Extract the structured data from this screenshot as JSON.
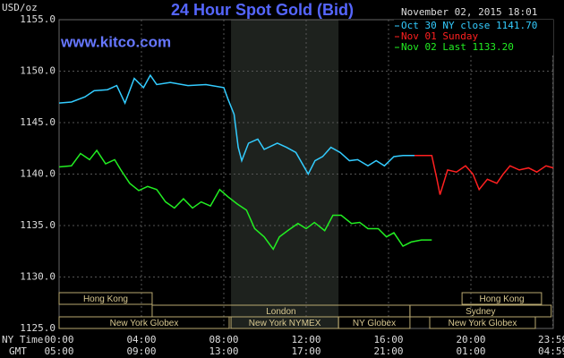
{
  "chart_data": {
    "type": "line",
    "title": "24 Hour Spot Gold (Bid)",
    "subtitle": "www.kitco.com",
    "timestamp": "November 02, 2015 18:01",
    "ylabel": "USD/oz",
    "xlabel": "NY Time",
    "x2label": "GMT",
    "xlim": [
      0,
      24
    ],
    "ylim": [
      1125,
      1155
    ],
    "yticks": [
      {
        "value": 1125,
        "label": "1125.0"
      },
      {
        "value": 1130,
        "label": "1130.0"
      },
      {
        "value": 1135,
        "label": "1135.0"
      },
      {
        "value": 1140,
        "label": "1140.0"
      },
      {
        "value": 1145,
        "label": "1145.0"
      },
      {
        "value": 1150,
        "label": "1150.0"
      },
      {
        "value": 1155,
        "label": "1155.0"
      }
    ],
    "xticks": [
      {
        "value": 0,
        "label": "00:00"
      },
      {
        "value": 4,
        "label": "04:00"
      },
      {
        "value": 8,
        "label": "08:00"
      },
      {
        "value": 12,
        "label": "12:00"
      },
      {
        "value": 16,
        "label": "16:00"
      },
      {
        "value": 20,
        "label": "20:00"
      },
      {
        "value": 23.98,
        "label": "23:59"
      }
    ],
    "x2tick_labels": [
      "05:00",
      "09:00",
      "13:00",
      "17:00",
      "21:00",
      "01:00",
      "04:59"
    ],
    "grid": true,
    "sessions": [
      [
        {
          "label": "Hong Kong",
          "start": 0,
          "end": 4.52
        },
        {
          "label": "Hong Kong",
          "start": 19.57,
          "end": 23.43
        }
      ],
      [
        {
          "label": "London",
          "start": 4.52,
          "end": 17.04
        },
        {
          "label": "Sydney",
          "start": 17.04,
          "end": 23.9
        }
      ],
      [
        {
          "label": "New York Globex",
          "start": 0,
          "end": 8.26
        },
        {
          "label": "New York NYMEX",
          "start": 8.35,
          "end": 13.57,
          "shaded": true
        },
        {
          "label": "NY Globex",
          "start": 13.57,
          "end": 17.04
        },
        {
          "label": "New York Globex",
          "start": 18,
          "end": 23.13
        }
      ]
    ],
    "series": [
      {
        "name": "Oct 30 NY close 1141.70",
        "color": "#33ccff",
        "x": [
          0,
          0.6,
          1.26,
          1.7,
          2.35,
          2.8,
          3.2,
          3.65,
          4.1,
          4.43,
          4.74,
          5.4,
          6.26,
          7.13,
          8,
          8.2,
          8.5,
          8.7,
          8.87,
          9.2,
          9.65,
          9.96,
          10.6,
          11.04,
          11.5,
          12.1,
          12.43,
          12.8,
          13.2,
          13.65,
          14.1,
          14.5,
          15,
          15.4,
          15.8,
          16.26,
          16.7,
          17.26
        ],
        "values": [
          1146.9,
          1147.0,
          1147.5,
          1148.1,
          1148.2,
          1148.6,
          1146.9,
          1149.3,
          1148.4,
          1149.6,
          1148.7,
          1148.9,
          1148.6,
          1148.7,
          1148.4,
          1147.3,
          1145.8,
          1142.6,
          1141.3,
          1143.0,
          1143.4,
          1142.4,
          1143.0,
          1142.6,
          1142.1,
          1140.0,
          1141.3,
          1141.7,
          1142.6,
          1142.1,
          1141.3,
          1141.4,
          1140.8,
          1141.3,
          1140.8,
          1141.7,
          1141.8,
          1141.8
        ]
      },
      {
        "name": "Nov 01 Sunday",
        "color": "#ff2020",
        "x": [
          17.26,
          18.1,
          18.35,
          18.5,
          18.87,
          19.3,
          19.74,
          20.1,
          20.4,
          20.8,
          21.26,
          21.57,
          21.9,
          22.35,
          22.8,
          23.2,
          23.65,
          24
        ],
        "values": [
          1141.8,
          1141.8,
          1139.5,
          1138.0,
          1140.4,
          1140.2,
          1140.8,
          1140.0,
          1138.5,
          1139.5,
          1139.1,
          1140.0,
          1140.8,
          1140.4,
          1140.6,
          1140.2,
          1140.8,
          1140.6
        ]
      },
      {
        "name": "Nov 02 Last 1133.20",
        "color": "#22ee22",
        "x": [
          0,
          0.6,
          1.04,
          1.48,
          1.83,
          2.26,
          2.7,
          3,
          3.43,
          3.87,
          4.3,
          4.74,
          5.17,
          5.6,
          6.04,
          6.48,
          6.9,
          7.35,
          7.8,
          8.2,
          8.65,
          9.1,
          9.5,
          9.96,
          10.4,
          10.7,
          11.1,
          11.6,
          12,
          12.4,
          12.9,
          13.3,
          13.7,
          14.2,
          14.6,
          15,
          15.5,
          15.9,
          16.26,
          16.7,
          17.1,
          17.6,
          18.1
        ],
        "values": [
          1140.7,
          1140.8,
          1142.0,
          1141.4,
          1142.3,
          1141.0,
          1141.4,
          1140.4,
          1139.1,
          1138.4,
          1138.8,
          1138.5,
          1137.3,
          1136.7,
          1137.6,
          1136.7,
          1137.3,
          1136.9,
          1138.5,
          1137.8,
          1137.1,
          1136.5,
          1134.7,
          1133.9,
          1132.7,
          1133.9,
          1134.5,
          1135.2,
          1134.7,
          1135.3,
          1134.5,
          1136.0,
          1136.0,
          1135.2,
          1135.3,
          1134.7,
          1134.7,
          1133.9,
          1134.3,
          1133.0,
          1133.4,
          1133.6,
          1133.6
        ]
      }
    ]
  }
}
